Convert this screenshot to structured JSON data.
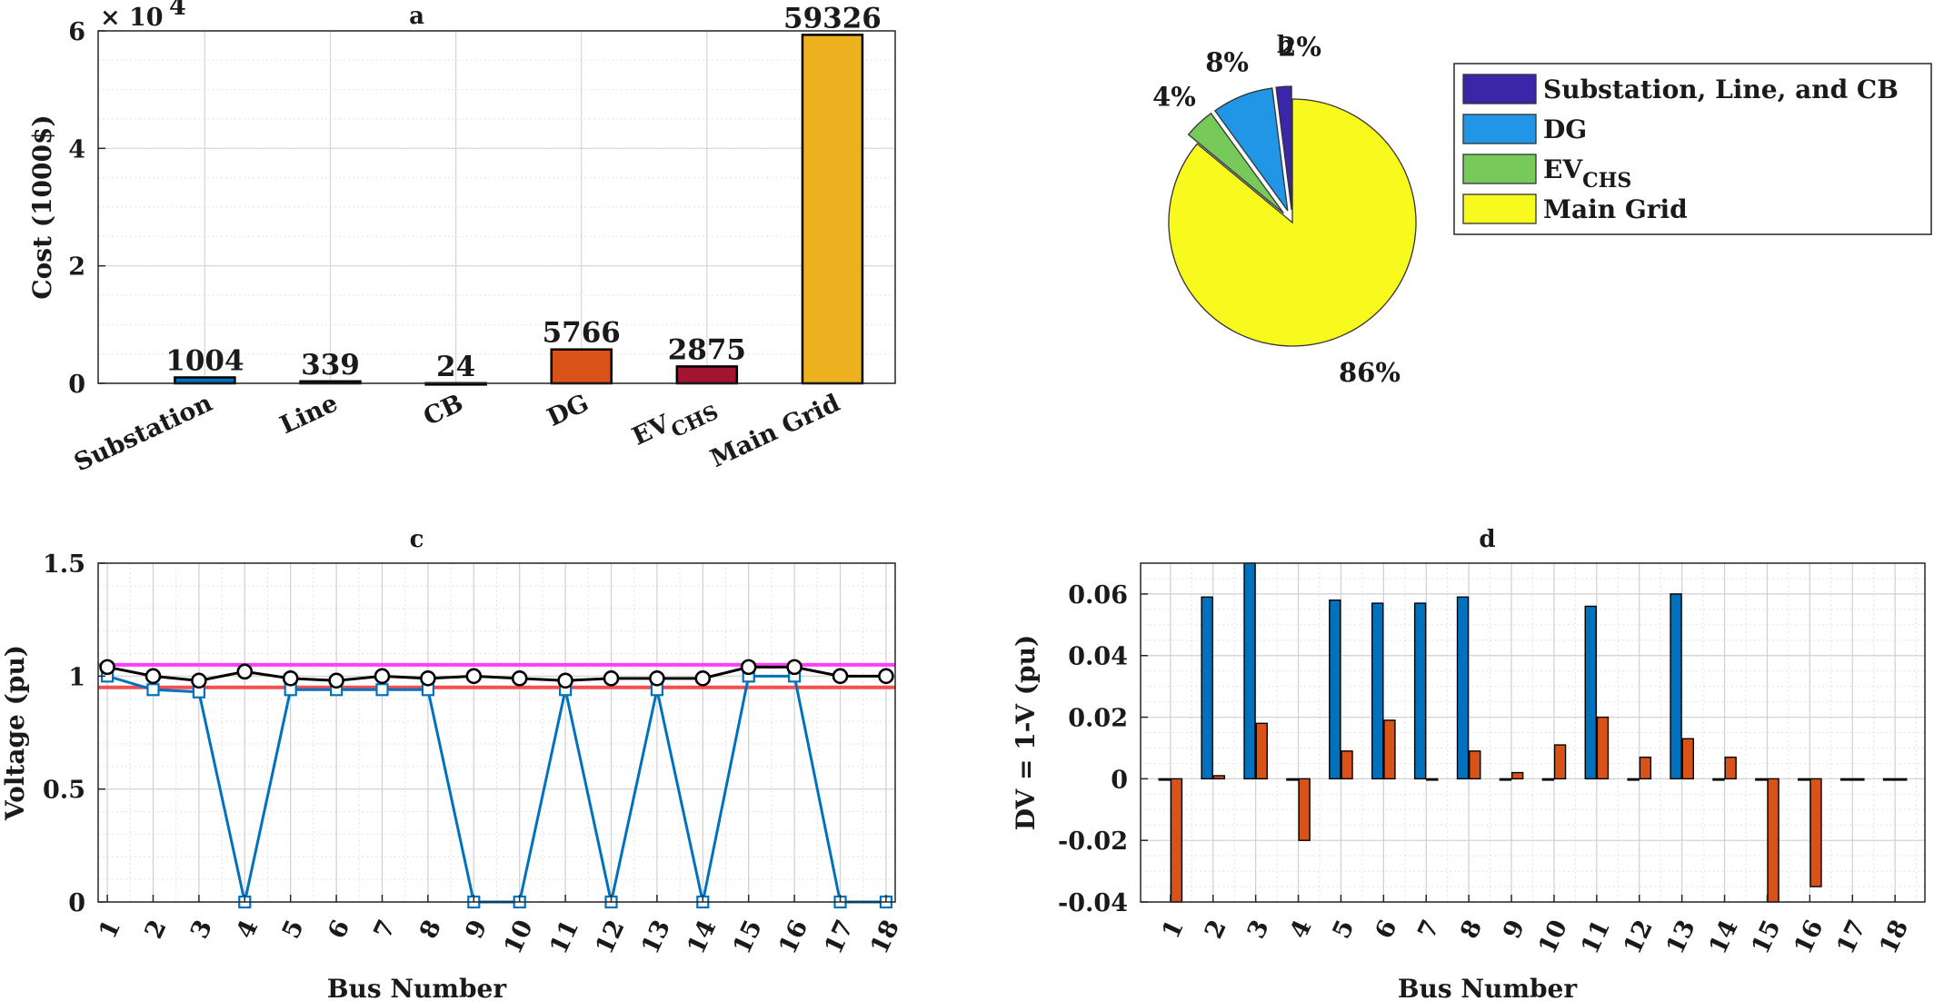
{
  "colors": {
    "blue": "#0072BD",
    "orange": "#D95319",
    "gold": "#EDB120",
    "crimson": "#A2142F",
    "purple": "#3B25A8",
    "lightblue": "#2196E6",
    "green": "#77C95A",
    "yellow": "#F7FA1C",
    "magenta": "#FF3CFF",
    "red": "#F25050",
    "black": "#000000"
  },
  "chart_data": [
    {
      "id": "a",
      "type": "bar",
      "title": "a",
      "ylabel": "Cost (1000$)",
      "xlabel": "",
      "exponent_label": "× 10",
      "exponent_power": "4",
      "ylim": [
        0,
        60000
      ],
      "yticks": [
        0,
        20000,
        40000,
        60000
      ],
      "ytick_labels": [
        "0",
        "2",
        "4",
        "6"
      ],
      "categories": [
        "Substation",
        "Line",
        "CB",
        "DG",
        "EV",
        "Main Grid"
      ],
      "category_subscripts": [
        "",
        "",
        "",
        "",
        "CHS",
        ""
      ],
      "values": [
        1004,
        339,
        24,
        5766,
        2875,
        59326
      ],
      "value_labels": [
        "1004",
        "339",
        "24",
        "5766",
        "2875",
        "59326"
      ],
      "bar_colors": [
        "#0072BD",
        "#0072BD",
        "#0072BD",
        "#D95319",
        "#A2142F",
        "#EDB120"
      ],
      "grid": true
    },
    {
      "id": "b",
      "type": "pie",
      "title": "b",
      "slices": [
        {
          "label": "Substation, Line, and CB",
          "sub": "",
          "percent": 2,
          "percent_label": "2%",
          "color": "#3B25A8",
          "explode": true
        },
        {
          "label": "DG",
          "sub": "",
          "percent": 8,
          "percent_label": "8%",
          "color": "#2196E6",
          "explode": true
        },
        {
          "label": "EV",
          "sub": "CHS",
          "percent": 4,
          "percent_label": "4%",
          "color": "#77C95A",
          "explode": true
        },
        {
          "label": "Main Grid",
          "sub": "",
          "percent": 86,
          "percent_label": "86%",
          "color": "#F7FA1C",
          "explode": false
        }
      ],
      "legend": "right"
    },
    {
      "id": "c",
      "type": "line",
      "title": "c",
      "xlabel": "Bus Number",
      "ylabel": "Voltage (pu)",
      "ylim": [
        0,
        1.5
      ],
      "yticks": [
        0,
        0.5,
        1,
        1.5
      ],
      "ytick_labels": [
        "0",
        "0.5",
        "1",
        "1.5"
      ],
      "xlim": [
        0.8,
        18.2
      ],
      "x": [
        1,
        2,
        3,
        4,
        5,
        6,
        7,
        8,
        9,
        10,
        11,
        12,
        13,
        14,
        15,
        16,
        17,
        18
      ],
      "xtick_labels": [
        "1",
        "2",
        "3",
        "4",
        "5",
        "6",
        "7",
        "8",
        "9",
        "10",
        "11",
        "12",
        "13",
        "14",
        "15",
        "16",
        "17",
        "18"
      ],
      "series": [
        {
          "values": [
            1.0,
            0.94,
            0.93,
            0,
            0.94,
            0.94,
            0.94,
            0.94,
            0,
            0,
            0.94,
            0,
            0.94,
            0,
            1.0,
            1.0,
            0,
            0
          ],
          "color": "#0072BD",
          "marker": "square"
        },
        {
          "values": [
            1.04,
            1.0,
            0.98,
            1.02,
            0.99,
            0.98,
            1.0,
            0.99,
            1.0,
            0.99,
            0.98,
            0.99,
            0.99,
            0.99,
            1.04,
            1.04,
            1.0,
            1.0
          ],
          "color": "#000000",
          "marker": "circle"
        }
      ],
      "limits": [
        {
          "value": 1.05,
          "color": "#FF3CFF"
        },
        {
          "value": 0.95,
          "color": "#F25050"
        }
      ],
      "grid": true
    },
    {
      "id": "d",
      "type": "bar",
      "title": "d",
      "xlabel": "Bus Number",
      "ylabel": "DV = 1-V (pu)",
      "ylim": [
        -0.04,
        0.07
      ],
      "yticks": [
        -0.04,
        -0.02,
        0,
        0.02,
        0.04,
        0.06
      ],
      "ytick_labels": [
        "-0.04",
        "-0.02",
        "0",
        "0.02",
        "0.04",
        "0.06"
      ],
      "categories": [
        "1",
        "2",
        "3",
        "4",
        "5",
        "6",
        "7",
        "8",
        "9",
        "10",
        "11",
        "12",
        "13",
        "14",
        "15",
        "16",
        "17",
        "18"
      ],
      "series": [
        {
          "values": [
            0,
            0.059,
            0.07,
            0,
            0.058,
            0.057,
            0.057,
            0.059,
            0,
            0,
            0.056,
            0,
            0.06,
            0,
            0,
            0,
            0,
            0
          ],
          "color": "#0072BD"
        },
        {
          "values": [
            -0.04,
            0.001,
            0.018,
            -0.02,
            0.009,
            0.019,
            0,
            0.009,
            0.002,
            0.011,
            0.02,
            0.007,
            0.013,
            0.007,
            -0.04,
            -0.035,
            0,
            0
          ],
          "color": "#D95319"
        }
      ],
      "grid": true
    }
  ]
}
